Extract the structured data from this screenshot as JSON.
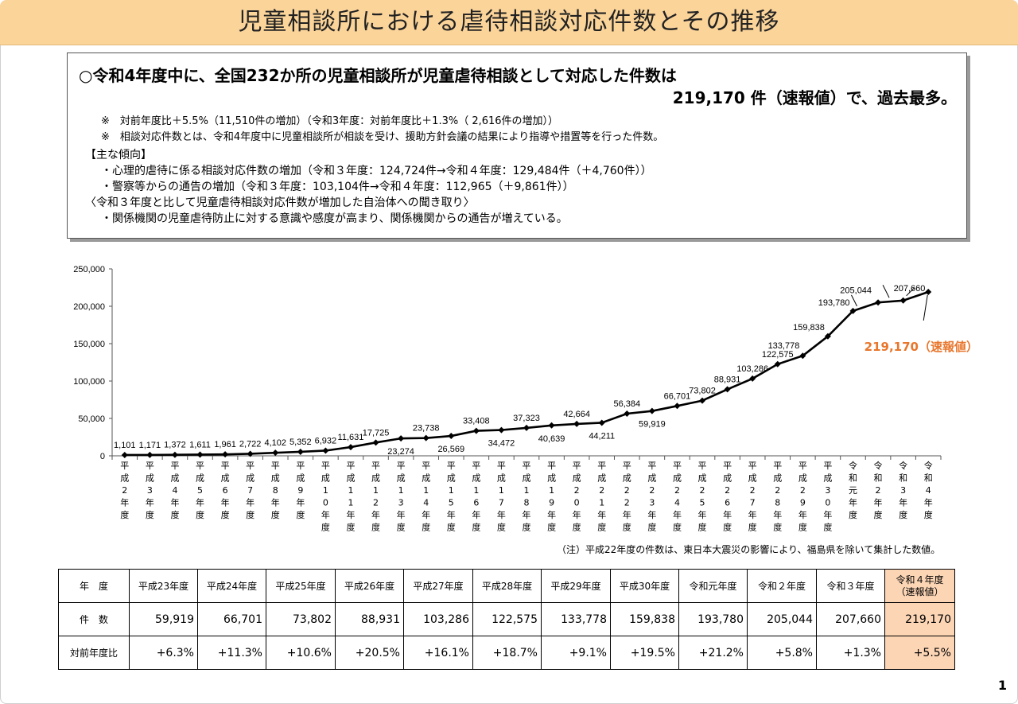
{
  "title": "児童相談所における虐待相談対応件数とその推移",
  "summary": {
    "line1": "○令和4年度中に、全国232か所の児童相談所が児童虐待相談として対応した件数は",
    "line2": "219,170 件（速報値）で、過去最多。",
    "note1": "※　対前年度比＋5.5%（11,510件の増加）（令和3年度：対前年度比＋1.3%（ 2,616件の増加））",
    "note2": "※　相談対応件数とは、令和4年度中に児童相談所が相談を受け、援助方針会議の結果により指導や措置等を行った件数。",
    "trend_header": "【主な傾向】",
    "trend1": "・心理的虐待に係る相談対応件数の増加（令和３年度：124,724件→令和４年度：129,484件（＋4,760件））",
    "trend2": "・警察等からの通告の増加（令和３年度：103,104件→令和４年度：112,965（＋9,861件））",
    "hearing_header": "〈令和３年度と比して児童虐待相談対応件数が増加した自治体への聞き取り〉",
    "hearing1": "・関係機関の児童虐待防止に対する意識や感度が高まり、関係機関からの通告が増えている。"
  },
  "chart_data": {
    "type": "line",
    "categories": [
      "平成2年度",
      "平成3年度",
      "平成4年度",
      "平成5年度",
      "平成6年度",
      "平成7年度",
      "平成8年度",
      "平成9年度",
      "平成10年度",
      "平成11年度",
      "平成12年度",
      "平成13年度",
      "平成14年度",
      "平成15年度",
      "平成16年度",
      "平成17年度",
      "平成18年度",
      "平成19年度",
      "平成20年度",
      "平成21年度",
      "平成22年度",
      "平成23年度",
      "平成24年度",
      "平成25年度",
      "平成26年度",
      "平成27年度",
      "平成28年度",
      "平成29年度",
      "平成30年度",
      "令和元年度",
      "令和2年度",
      "令和3年度",
      "令和4年度"
    ],
    "values": [
      1101,
      1171,
      1372,
      1611,
      1961,
      2722,
      4102,
      5352,
      6932,
      11631,
      17725,
      23274,
      23738,
      26569,
      33408,
      34472,
      37323,
      40639,
      42664,
      44211,
      56384,
      59919,
      66701,
      73802,
      88931,
      103286,
      122575,
      133778,
      159838,
      193780,
      205044,
      207660,
      219170
    ],
    "labels": [
      "1,101",
      "1,171",
      "1,372",
      "1,611",
      "1,961",
      "2,722",
      "4,102",
      "5,352",
      "6,932",
      "11,631",
      "17,725",
      "23,274",
      "23,738",
      "26,569",
      "33,408",
      "34,472",
      "37,323",
      "40,639",
      "42,664",
      "44,211",
      "56,384",
      "59,919",
      "66,701",
      "73,802",
      "88,931",
      "103,286",
      "122,575",
      "133,778",
      "159,838",
      "193,780",
      "205,044",
      "207,660",
      ""
    ],
    "ylim": [
      0,
      250000
    ],
    "yticks": [
      "0",
      "50,000",
      "100,000",
      "150,000",
      "200,000",
      "250,000"
    ],
    "callout": "219,170（速報値）",
    "callout_color": "#e8762c",
    "line_color": "#000000"
  },
  "footnote": "（注）平成22年度の件数は、東日本大震災の影響により、福島県を除いて集計した数値。",
  "table": {
    "row_headers": [
      "年　度",
      "件　数",
      "対前年度比"
    ],
    "years": [
      "平成23年度",
      "平成24年度",
      "平成25年度",
      "平成26年度",
      "平成27年度",
      "平成28年度",
      "平成29年度",
      "平成30年度",
      "令和元年度",
      "令和２年度",
      "令和３年度",
      "令和４年度"
    ],
    "last_year_note": "（速報値）",
    "counts": [
      "59,919",
      "66,701",
      "73,802",
      "88,931",
      "103,286",
      "122,575",
      "133,778",
      "159,838",
      "193,780",
      "205,044",
      "207,660",
      "219,170"
    ],
    "changes": [
      "+6.3%",
      "+11.3%",
      "+10.6%",
      "+20.5%",
      "+16.1%",
      "+18.7%",
      "+9.1%",
      "+19.5%",
      "+21.2%",
      "+5.8%",
      "+1.3%",
      "+5.5%"
    ],
    "highlight_color": "#fcd5b5"
  },
  "page_number": "1"
}
